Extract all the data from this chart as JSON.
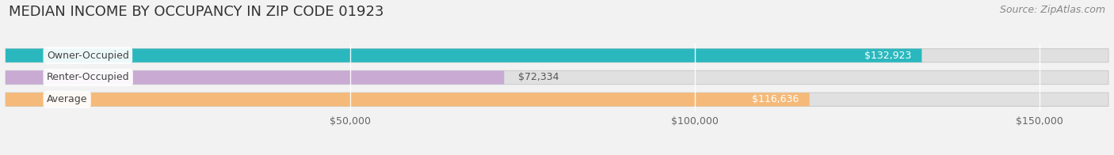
{
  "title": "MEDIAN INCOME BY OCCUPANCY IN ZIP CODE 01923",
  "source": "Source: ZipAtlas.com",
  "categories": [
    "Owner-Occupied",
    "Renter-Occupied",
    "Average"
  ],
  "values": [
    132923,
    72334,
    116636
  ],
  "bar_colors": [
    "#2ab8be",
    "#c9aced4",
    "#f5ba7a"
  ],
  "bar_colors_fixed": [
    "#2ab8be",
    "#c8aad3",
    "#f5ba7a"
  ],
  "value_labels": [
    "$132,923",
    "$72,334",
    "$116,636"
  ],
  "value_label_inside": [
    true,
    false,
    true
  ],
  "xlim_max": 160000,
  "xtick_vals": [
    50000,
    100000,
    150000
  ],
  "xtick_labels": [
    "$50,000",
    "$100,000",
    "$150,000"
  ],
  "background_color": "#f2f2f2",
  "bar_bg_color": "#e0e0e0",
  "title_fontsize": 13,
  "source_fontsize": 9,
  "bar_label_fontsize": 9,
  "value_fontsize": 9
}
